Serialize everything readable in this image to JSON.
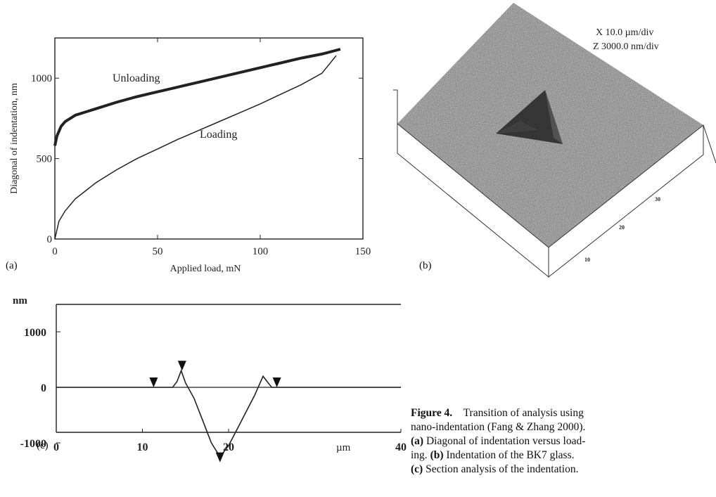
{
  "chart_data": [
    {
      "panel": "(a)",
      "type": "line",
      "xlabel": "Applied load, mN",
      "ylabel": "Diagonal of indentation, nm",
      "xlim": [
        0,
        150
      ],
      "ylim": [
        0,
        1250
      ],
      "xticks": [
        0,
        50,
        100,
        150
      ],
      "yticks": [
        0,
        500,
        1000
      ],
      "grid": false,
      "series": [
        {
          "name": "Loading",
          "x": [
            0,
            2,
            5,
            10,
            20,
            30,
            40,
            50,
            60,
            70,
            80,
            90,
            100,
            110,
            120,
            130,
            137
          ],
          "y": [
            0,
            110,
            175,
            250,
            350,
            430,
            500,
            560,
            620,
            675,
            730,
            785,
            840,
            900,
            960,
            1030,
            1140
          ]
        },
        {
          "name": "Unloading",
          "x": [
            0,
            1,
            3,
            5,
            10,
            20,
            30,
            40,
            50,
            60,
            70,
            80,
            90,
            100,
            110,
            120,
            130,
            139
          ],
          "y": [
            580,
            640,
            700,
            730,
            770,
            810,
            850,
            885,
            915,
            945,
            975,
            1005,
            1035,
            1065,
            1095,
            1125,
            1150,
            1180
          ]
        }
      ]
    },
    {
      "panel": "(b)",
      "type": "surface",
      "annotations": [
        "X 10.0 µm/div",
        "Z 3000.0 nm/div"
      ],
      "axis_ticks": [
        "10",
        "20",
        "30"
      ]
    },
    {
      "panel": "(c)",
      "type": "line",
      "xlabel": "µm",
      "ylabel": "nm",
      "xlim": [
        0,
        40
      ],
      "ylim": [
        -1500,
        1500
      ],
      "xticks": [
        0,
        10,
        20,
        40
      ],
      "yticks": [
        1000,
        0,
        -1000
      ],
      "y_tick_labels": [
        "1000",
        "0",
        "-1000"
      ],
      "grid": false,
      "profile": {
        "x": [
          0,
          13.5,
          14,
          14.5,
          15,
          16,
          17,
          18,
          19,
          20,
          21,
          22,
          23,
          24,
          24.5,
          25,
          40
        ],
        "y": [
          0,
          0,
          100,
          300,
          80,
          -200,
          -600,
          -1000,
          -1250,
          -1050,
          -750,
          -450,
          -150,
          200,
          100,
          0,
          0
        ]
      },
      "markers": [
        {
          "x": 11.3,
          "y": 0,
          "dir": "down"
        },
        {
          "x": 14.6,
          "y": 300,
          "dir": "down"
        },
        {
          "x": 19,
          "y": -1350,
          "dir": "down"
        },
        {
          "x": 25.6,
          "y": 0,
          "dir": "down"
        }
      ]
    }
  ],
  "labels": {
    "a": "(a)",
    "b": "(b)",
    "c": "(c)"
  },
  "caption": {
    "title": "Figure 4.",
    "line1_rest": "Transition of analysis using",
    "line2": "nano-indentation (Fang & Zhang 2000).",
    "a_bold": "(a)",
    "line3_rest": "Diagonal of indentation versus load-",
    "line4_start": "ing.",
    "b_bold": "(b)",
    "line4_rest": "Indentation of the BK7 glass.",
    "c_bold": "(c)",
    "line5_rest": "Section analysis of the indentation."
  },
  "colors": {
    "ink": "#222222",
    "surface": "#8c8c8c"
  }
}
